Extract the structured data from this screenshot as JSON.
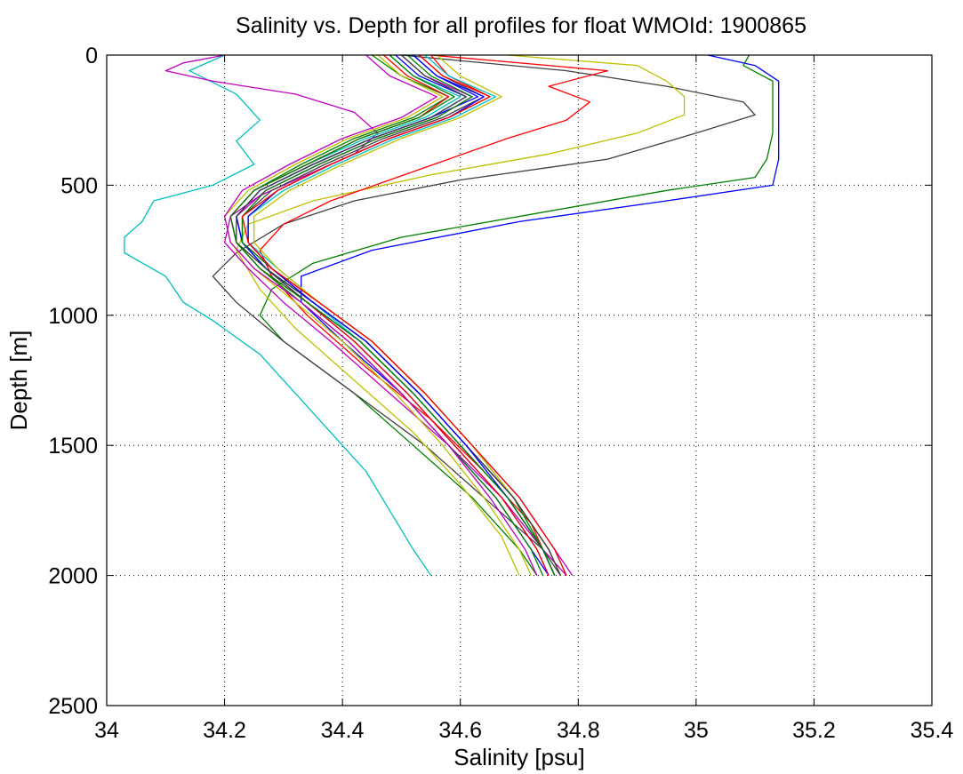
{
  "chart_data": {
    "type": "line",
    "title": "Salinity vs. Depth for all profiles for float WMOId: 1900865",
    "xlabel": "Salinity [psu]",
    "ylabel": "Depth [m]",
    "xlim": [
      34,
      35.4
    ],
    "ylim": [
      0,
      2500
    ],
    "y_reversed": true,
    "x_ticks": [
      34,
      34.2,
      34.4,
      34.6,
      34.8,
      35,
      35.2,
      35.4
    ],
    "x_tick_labels": [
      "34",
      "34.2",
      "34.4",
      "34.6",
      "34.8",
      "35",
      "35.2",
      "35.4"
    ],
    "y_ticks": [
      0,
      500,
      1000,
      1500,
      2000,
      2500
    ],
    "y_tick_labels": [
      "0",
      "500",
      "1000",
      "1500",
      "2000",
      "2500"
    ],
    "grid": true,
    "grid_style": "dotted",
    "legend": "none",
    "series_colors": [
      "#0000ff",
      "#008000",
      "#ff0000",
      "#00bfbf",
      "#bf00bf",
      "#bfbf00",
      "#404040"
    ],
    "series": [
      {
        "color": "#00bfbf",
        "depth": [
          0,
          60,
          150,
          250,
          330,
          420,
          500,
          560,
          640,
          700,
          760,
          850,
          950,
          1020,
          1150,
          1300,
          1450,
          1600,
          1750,
          1900,
          2000
        ],
        "salinity": [
          34.2,
          34.14,
          34.22,
          34.26,
          34.22,
          34.25,
          34.18,
          34.08,
          34.06,
          34.03,
          34.03,
          34.1,
          34.13,
          34.18,
          34.26,
          34.32,
          34.38,
          34.44,
          34.48,
          34.52,
          34.55
        ]
      },
      {
        "color": "#0000ff",
        "depth": [
          0,
          40,
          100,
          200,
          300,
          400,
          500,
          560,
          640,
          750,
          850,
          950,
          1100,
          1300,
          1500,
          1700,
          1900,
          2000
        ],
        "salinity": [
          35.02,
          35.1,
          35.14,
          35.14,
          35.14,
          35.14,
          35.13,
          34.95,
          34.7,
          34.45,
          34.33,
          34.33,
          34.4,
          34.5,
          34.58,
          34.66,
          34.72,
          34.75
        ]
      },
      {
        "color": "#008000",
        "depth": [
          0,
          40,
          100,
          200,
          300,
          400,
          470,
          520,
          600,
          700,
          800,
          900,
          1000,
          1100,
          1300,
          1500,
          1700,
          1900,
          2000
        ],
        "salinity": [
          35.09,
          35.08,
          35.13,
          35.13,
          35.13,
          35.12,
          35.1,
          34.95,
          34.75,
          34.5,
          34.35,
          34.28,
          34.26,
          34.3,
          34.42,
          34.52,
          34.62,
          34.7,
          34.73
        ]
      },
      {
        "color": "#404040",
        "depth": [
          0,
          60,
          120,
          180,
          230,
          300,
          400,
          480,
          560,
          650,
          760,
          850,
          950,
          1100,
          1300,
          1500,
          1700,
          1900,
          2000
        ],
        "salinity": [
          34.5,
          34.78,
          34.95,
          35.08,
          35.1,
          35.0,
          34.85,
          34.6,
          34.42,
          34.3,
          34.22,
          34.18,
          34.22,
          34.3,
          34.42,
          34.54,
          34.64,
          34.74,
          34.77
        ]
      },
      {
        "color": "#bfbf00",
        "depth": [
          0,
          40,
          100,
          160,
          230,
          300,
          380,
          460,
          560,
          650,
          750,
          900,
          1050,
          1250,
          1450,
          1650,
          1850,
          2000
        ],
        "salinity": [
          34.68,
          34.9,
          34.95,
          34.98,
          34.98,
          34.9,
          34.75,
          34.55,
          34.35,
          34.24,
          34.22,
          34.26,
          34.32,
          34.42,
          34.52,
          34.6,
          34.67,
          34.7
        ]
      },
      {
        "color": "#ff0000",
        "depth": [
          0,
          60,
          120,
          180,
          250,
          320,
          400,
          480,
          560,
          650,
          750,
          850,
          1000,
          1200,
          1400,
          1600,
          1800,
          2000
        ],
        "salinity": [
          34.55,
          34.85,
          34.75,
          34.82,
          34.78,
          34.68,
          34.58,
          34.48,
          34.38,
          34.3,
          34.26,
          34.28,
          34.34,
          34.44,
          34.55,
          34.64,
          34.72,
          34.76
        ]
      },
      {
        "color": "#bf00bf",
        "depth": [
          0,
          30,
          60,
          100,
          150,
          220,
          300,
          380,
          460,
          540,
          620,
          720,
          820,
          950,
          1100,
          1300,
          1500,
          1700,
          1900,
          2000
        ],
        "salinity": [
          34.2,
          34.13,
          34.1,
          34.18,
          34.32,
          34.42,
          34.46,
          34.42,
          34.34,
          34.26,
          34.21,
          34.2,
          34.24,
          34.3,
          34.38,
          34.48,
          34.58,
          34.67,
          34.74,
          34.78
        ]
      },
      {
        "color": "#0000ff",
        "depth": [
          0,
          80,
          160,
          240,
          320,
          420,
          520,
          620,
          720,
          820,
          950,
          1100,
          1300,
          1500,
          1700,
          1900,
          2000
        ],
        "salinity": [
          34.52,
          34.56,
          34.63,
          34.55,
          34.45,
          34.35,
          34.26,
          34.22,
          34.23,
          34.27,
          34.34,
          34.42,
          34.51,
          34.59,
          34.67,
          34.73,
          34.75
        ]
      },
      {
        "color": "#008000",
        "depth": [
          0,
          80,
          160,
          240,
          320,
          420,
          520,
          620,
          720,
          820,
          950,
          1100,
          1300,
          1500,
          1700,
          1900,
          2000
        ],
        "salinity": [
          34.45,
          34.5,
          34.58,
          34.52,
          34.42,
          34.33,
          34.25,
          34.21,
          34.22,
          34.26,
          34.33,
          34.41,
          34.5,
          34.58,
          34.66,
          34.72,
          34.74
        ]
      },
      {
        "color": "#ff0000",
        "depth": [
          0,
          80,
          160,
          240,
          320,
          420,
          520,
          620,
          720,
          820,
          950,
          1100,
          1300,
          1500,
          1700,
          1900,
          2000
        ],
        "salinity": [
          34.55,
          34.58,
          34.65,
          34.58,
          34.48,
          34.38,
          34.29,
          34.24,
          34.24,
          34.28,
          34.35,
          34.44,
          34.53,
          34.61,
          34.69,
          34.75,
          34.77
        ]
      },
      {
        "color": "#00bfbf",
        "depth": [
          0,
          80,
          160,
          240,
          320,
          420,
          520,
          620,
          720,
          820,
          950,
          1100,
          1300,
          1500,
          1700,
          1900,
          2000
        ],
        "salinity": [
          34.48,
          34.52,
          34.6,
          34.54,
          34.44,
          34.34,
          34.25,
          34.21,
          34.22,
          34.27,
          34.35,
          34.43,
          34.52,
          34.6,
          34.68,
          34.74,
          34.76
        ]
      },
      {
        "color": "#bf00bf",
        "depth": [
          0,
          80,
          160,
          240,
          320,
          420,
          520,
          620,
          720,
          820,
          950,
          1100,
          1300,
          1500,
          1700,
          1900,
          2000
        ],
        "salinity": [
          34.5,
          34.54,
          34.62,
          34.56,
          34.46,
          34.36,
          34.27,
          34.22,
          34.23,
          34.28,
          34.36,
          34.45,
          34.54,
          34.62,
          34.7,
          34.76,
          34.79
        ]
      },
      {
        "color": "#bfbf00",
        "depth": [
          0,
          80,
          160,
          240,
          320,
          420,
          520,
          620,
          720,
          820,
          950,
          1100,
          1300,
          1500,
          1700,
          1900,
          2000
        ],
        "salinity": [
          34.46,
          34.5,
          34.57,
          34.51,
          34.41,
          34.32,
          34.24,
          34.2,
          34.21,
          34.25,
          34.32,
          34.4,
          34.49,
          34.57,
          34.64,
          34.7,
          34.72
        ]
      },
      {
        "color": "#404040",
        "depth": [
          0,
          80,
          160,
          240,
          320,
          420,
          520,
          620,
          720,
          820,
          950,
          1100,
          1300,
          1500,
          1700,
          1900,
          2000
        ],
        "salinity": [
          34.53,
          34.57,
          34.64,
          34.57,
          34.47,
          34.37,
          34.28,
          34.23,
          34.23,
          34.27,
          34.34,
          34.43,
          34.52,
          34.6,
          34.68,
          34.74,
          34.76
        ]
      },
      {
        "color": "#0000ff",
        "depth": [
          0,
          80,
          160,
          240,
          320,
          420,
          520,
          620,
          720,
          820,
          950,
          1100,
          1300,
          1500,
          1700,
          1900,
          2000
        ],
        "salinity": [
          34.49,
          34.53,
          34.61,
          34.55,
          34.45,
          34.35,
          34.26,
          34.22,
          34.23,
          34.27,
          34.35,
          34.44,
          34.53,
          34.61,
          34.69,
          34.75,
          34.77
        ]
      },
      {
        "color": "#008000",
        "depth": [
          0,
          80,
          160,
          240,
          320,
          420,
          520,
          620,
          720,
          820,
          950,
          1100,
          1300,
          1500,
          1700,
          1900,
          2000
        ],
        "salinity": [
          34.51,
          34.55,
          34.62,
          34.56,
          34.46,
          34.36,
          34.27,
          34.23,
          34.23,
          34.28,
          34.36,
          34.45,
          34.54,
          34.62,
          34.69,
          34.74,
          34.76
        ]
      },
      {
        "color": "#ff0000",
        "depth": [
          0,
          80,
          160,
          240,
          320,
          420,
          520,
          620,
          720,
          820,
          950,
          1100,
          1300,
          1500,
          1700,
          1900,
          2000
        ],
        "salinity": [
          34.47,
          34.51,
          34.58,
          34.53,
          34.43,
          34.34,
          34.25,
          34.21,
          34.22,
          34.26,
          34.34,
          34.42,
          34.51,
          34.59,
          34.67,
          34.73,
          34.75
        ]
      },
      {
        "color": "#00bfbf",
        "depth": [
          0,
          80,
          160,
          240,
          320,
          420,
          520,
          620,
          720,
          820,
          950,
          1100,
          1300,
          1500,
          1700,
          1900,
          2000
        ],
        "salinity": [
          34.54,
          34.58,
          34.66,
          34.59,
          34.49,
          34.39,
          34.3,
          34.24,
          34.24,
          34.29,
          34.36,
          34.45,
          34.54,
          34.62,
          34.7,
          34.76,
          34.78
        ]
      },
      {
        "color": "#bf00bf",
        "depth": [
          0,
          80,
          160,
          240,
          320,
          420,
          520,
          620,
          720,
          820,
          950,
          1100,
          1300,
          1500,
          1700,
          1900,
          2000
        ],
        "salinity": [
          34.44,
          34.48,
          34.56,
          34.5,
          34.4,
          34.31,
          34.23,
          34.2,
          34.21,
          34.25,
          34.33,
          34.41,
          34.5,
          34.58,
          34.65,
          34.71,
          34.73
        ]
      },
      {
        "color": "#bfbf00",
        "depth": [
          0,
          80,
          160,
          240,
          320,
          420,
          520,
          620,
          720,
          820,
          950,
          1100,
          1300,
          1500,
          1700,
          1900,
          2000
        ],
        "salinity": [
          34.56,
          34.6,
          34.67,
          34.6,
          34.5,
          34.4,
          34.31,
          34.25,
          34.25,
          34.29,
          34.36,
          34.45,
          34.54,
          34.62,
          34.69,
          34.75,
          34.77
        ]
      },
      {
        "color": "#404040",
        "depth": [
          0,
          80,
          160,
          240,
          320,
          420,
          520,
          620,
          720,
          820,
          950,
          1100,
          1300,
          1500,
          1700,
          1900,
          2000
        ],
        "salinity": [
          34.5,
          34.54,
          34.61,
          34.55,
          34.45,
          34.35,
          34.26,
          34.22,
          34.22,
          34.27,
          34.35,
          34.44,
          34.53,
          34.61,
          34.69,
          34.75,
          34.77
        ]
      },
      {
        "color": "#0000ff",
        "depth": [
          0,
          80,
          160,
          240,
          320,
          420,
          520,
          620,
          720,
          820,
          950,
          1100,
          1300,
          1500,
          1700,
          1900,
          2000
        ],
        "salinity": [
          34.52,
          34.56,
          34.64,
          34.58,
          34.48,
          34.38,
          34.29,
          34.24,
          34.24,
          34.28,
          34.35,
          34.44,
          34.53,
          34.61,
          34.68,
          34.74,
          34.76
        ]
      },
      {
        "color": "#008000",
        "depth": [
          0,
          80,
          160,
          240,
          320,
          420,
          520,
          620,
          720,
          820,
          950,
          1100,
          1300,
          1500,
          1700,
          1900,
          2000
        ],
        "salinity": [
          34.48,
          34.52,
          34.59,
          34.53,
          34.43,
          34.34,
          34.25,
          34.21,
          34.22,
          34.26,
          34.34,
          34.43,
          34.52,
          34.6,
          34.68,
          34.74,
          34.76
        ]
      },
      {
        "color": "#ff0000",
        "depth": [
          0,
          80,
          160,
          240,
          320,
          420,
          520,
          620,
          720,
          820,
          950,
          1100,
          1300,
          1500,
          1700,
          1900,
          2000
        ],
        "salinity": [
          34.53,
          34.57,
          34.65,
          34.58,
          34.48,
          34.38,
          34.29,
          34.23,
          34.24,
          34.28,
          34.36,
          34.45,
          34.54,
          34.62,
          34.7,
          34.76,
          34.78
        ]
      }
    ]
  }
}
